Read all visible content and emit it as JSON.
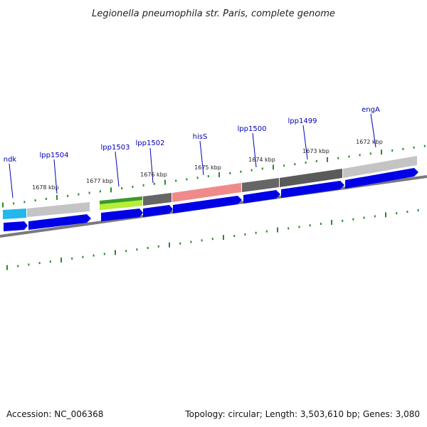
{
  "title": "Legionella pneumophila str. Paris, complete genome",
  "footer": {
    "accession": "Accession: NC_006368",
    "summary": "Topology: circular; Length: 3,503,610 bp; Genes: 3,080"
  },
  "colors": {
    "cds_arrow": "#0000e6",
    "backbone": "#7a7a7a",
    "tick": "#2a8a2a",
    "label": "#0000b4",
    "ndk": "#22b8ec",
    "lpp1504": "#c4c4c4",
    "lpp1503": "#3a9a2a",
    "lpp1502": "#666666",
    "hisS": "#f08a8a",
    "lpp1500": "#666666",
    "lpp1499": "#5a5a5a",
    "engA": "#c4c4c4"
  },
  "kbp_marks": [
    {
      "text": "1678 kbp"
    },
    {
      "text": "1677 kbp"
    },
    {
      "text": "1676 kbp"
    },
    {
      "text": "1675 kbp"
    },
    {
      "text": "1674 kbp"
    },
    {
      "text": "1673 kbp"
    },
    {
      "text": "1672 kbp"
    }
  ],
  "genes": [
    {
      "name": "ndk"
    },
    {
      "name": "lpp1504"
    },
    {
      "name": "lpp1503"
    },
    {
      "name": "lpp1502"
    },
    {
      "name": "hisS"
    },
    {
      "name": "lpp1500"
    },
    {
      "name": "lpp1499"
    },
    {
      "name": "engA"
    }
  ]
}
